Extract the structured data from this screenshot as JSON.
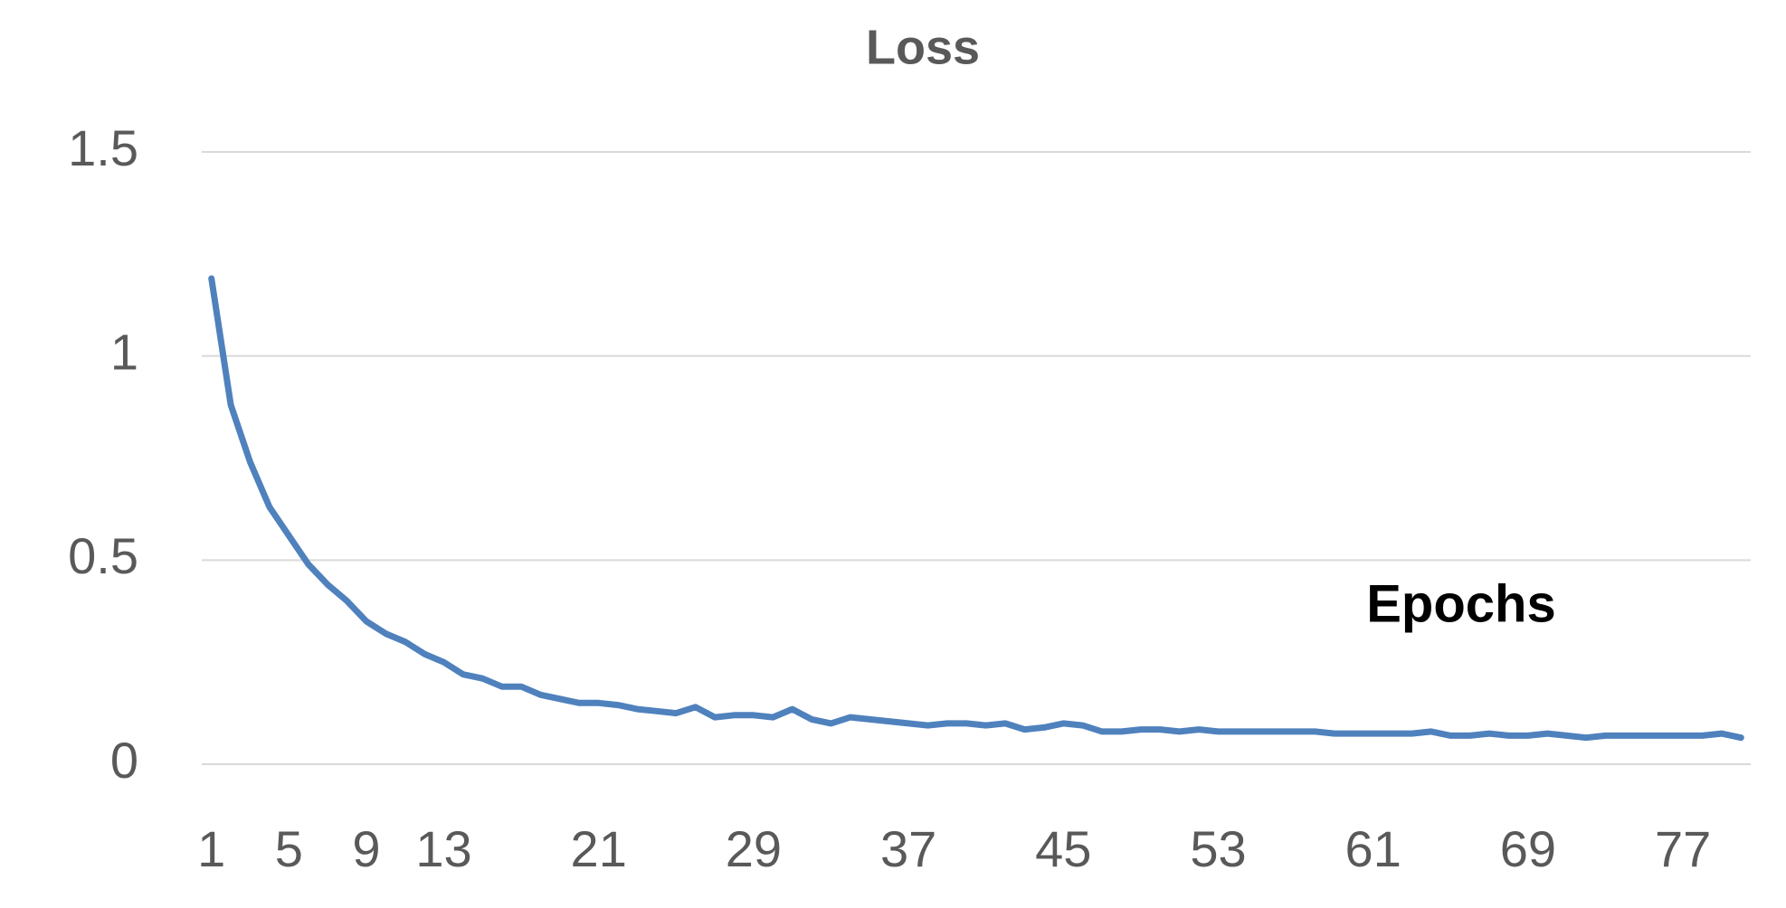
{
  "chart_data": {
    "type": "line",
    "title": "Loss",
    "x_label": "Epochs",
    "categories": [
      1,
      null,
      null,
      null,
      5,
      null,
      null,
      null,
      9,
      null,
      null,
      null,
      13,
      null,
      null,
      null,
      null,
      null,
      null,
      null,
      21,
      null,
      null,
      null,
      null,
      null,
      null,
      null,
      29,
      null,
      null,
      null,
      null,
      null,
      null,
      null,
      37,
      null,
      null,
      null,
      null,
      null,
      null,
      null,
      45,
      null,
      null,
      null,
      null,
      null,
      null,
      null,
      53,
      null,
      null,
      null,
      null,
      null,
      null,
      null,
      61,
      null,
      null,
      null,
      null,
      null,
      null,
      null,
      69,
      null,
      null,
      null,
      null,
      null,
      null,
      null,
      77,
      null,
      null,
      null
    ],
    "values": [
      1.19,
      0.88,
      0.74,
      0.63,
      0.56,
      0.49,
      0.44,
      0.4,
      0.35,
      0.32,
      0.3,
      0.27,
      0.25,
      0.22,
      0.21,
      0.19,
      0.19,
      0.17,
      0.16,
      0.15,
      0.15,
      0.145,
      0.135,
      0.13,
      0.125,
      0.14,
      0.115,
      0.12,
      0.12,
      0.115,
      0.135,
      0.11,
      0.1,
      0.115,
      0.11,
      0.105,
      0.1,
      0.095,
      0.1,
      0.1,
      0.095,
      0.1,
      0.085,
      0.09,
      0.1,
      0.095,
      0.08,
      0.08,
      0.085,
      0.085,
      0.08,
      0.085,
      0.08,
      0.08,
      0.08,
      0.08,
      0.08,
      0.08,
      0.075,
      0.075,
      0.075,
      0.075,
      0.075,
      0.08,
      0.07,
      0.07,
      0.075,
      0.07,
      0.07,
      0.075,
      0.07,
      0.065,
      0.07,
      0.07,
      0.07,
      0.07,
      0.07,
      0.07,
      0.075,
      0.065
    ],
    "color": "#4f81bd",
    "ylim": [
      0,
      1.5
    ],
    "yticks": [
      0,
      0.5,
      1,
      1.5
    ],
    "grid": true
  }
}
